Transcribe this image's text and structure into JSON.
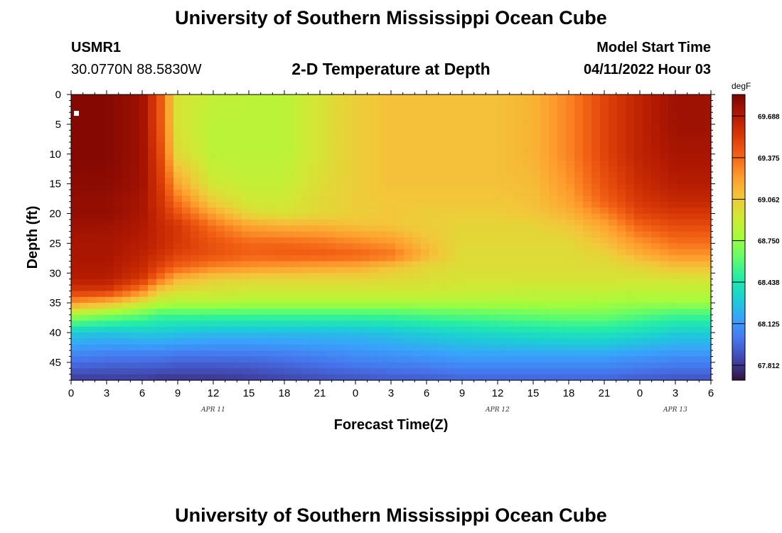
{
  "page": {
    "top_title": "University of Southern Mississippi Ocean Cube",
    "bottom_title": "University of Southern Mississippi Ocean Cube",
    "station_id": "USMR1",
    "station_coords": "30.0770N  88.5830W",
    "plot_title": "2-D Temperature at Depth",
    "model_start_label": "Model Start Time",
    "model_start_value": "04/11/2022 Hour 03"
  },
  "chart_data": {
    "type": "heatmap",
    "title": "2-D Temperature at Depth",
    "xlabel": "Forecast Time(Z)",
    "ylabel": "Depth (ft)",
    "x_tick_labels": [
      "0",
      "3",
      "6",
      "9",
      "12",
      "15",
      "18",
      "21",
      "0",
      "3",
      "6",
      "9",
      "12",
      "15",
      "18",
      "21",
      "0",
      "3",
      "6"
    ],
    "date_labels": [
      {
        "label": "APR 11",
        "hour": 12
      },
      {
        "label": "APR 12",
        "hour": 36
      },
      {
        "label": "APR 13",
        "hour": 51
      }
    ],
    "xlim": [
      0,
      54
    ],
    "y_ticks": [
      0,
      5,
      10,
      15,
      20,
      25,
      30,
      35,
      40,
      45
    ],
    "ylim": [
      0,
      48
    ],
    "y_inverted": true,
    "colorbar": {
      "unit": "degF",
      "ticks": [
        "69.688",
        "69.375",
        "69.062",
        "68.750",
        "68.438",
        "68.125",
        "67.812"
      ],
      "range": [
        67.7,
        69.85
      ],
      "colors": [
        "#30123b",
        "#4145ab",
        "#4675ed",
        "#39a2fc",
        "#1bcfd4",
        "#24eca6",
        "#61fc6c",
        "#a4fc3b",
        "#d1e834",
        "#f3c63a",
        "#fe9b2d",
        "#f36315",
        "#d93806",
        "#b11901",
        "#7a0403"
      ]
    },
    "columns_hours": [
      0,
      3,
      6,
      7.5,
      9,
      12,
      15,
      18,
      21,
      24,
      27,
      30,
      33,
      36,
      39,
      42,
      45,
      48,
      51,
      54
    ],
    "rows_depth_ft": [
      0,
      5,
      10,
      15,
      18,
      20,
      22,
      25,
      27,
      29,
      31,
      33,
      35,
      37,
      40,
      44,
      48
    ],
    "values": [
      [
        69.82,
        69.82,
        69.75,
        69.45,
        68.95,
        68.88,
        68.85,
        68.85,
        68.95,
        69.05,
        69.1,
        69.1,
        69.1,
        69.1,
        69.15,
        69.3,
        69.5,
        69.65,
        69.75,
        69.75
      ],
      [
        69.82,
        69.82,
        69.75,
        69.45,
        68.95,
        68.85,
        68.85,
        68.85,
        68.95,
        69.05,
        69.1,
        69.1,
        69.1,
        69.1,
        69.15,
        69.3,
        69.5,
        69.65,
        69.75,
        69.75
      ],
      [
        69.82,
        69.82,
        69.75,
        69.5,
        69.0,
        68.85,
        68.85,
        68.85,
        68.95,
        69.05,
        69.1,
        69.1,
        69.1,
        69.1,
        69.15,
        69.3,
        69.5,
        69.65,
        69.72,
        69.72
      ],
      [
        69.8,
        69.8,
        69.75,
        69.55,
        69.2,
        68.92,
        68.88,
        68.88,
        68.98,
        69.05,
        69.1,
        69.1,
        69.1,
        69.1,
        69.12,
        69.25,
        69.45,
        69.6,
        69.68,
        69.68
      ],
      [
        69.78,
        69.78,
        69.72,
        69.58,
        69.35,
        69.05,
        68.92,
        68.92,
        69.0,
        69.05,
        69.08,
        69.08,
        69.08,
        69.08,
        69.1,
        69.2,
        69.4,
        69.55,
        69.62,
        69.62
      ],
      [
        69.78,
        69.78,
        69.72,
        69.6,
        69.45,
        69.2,
        69.0,
        68.95,
        69.0,
        69.05,
        69.08,
        69.05,
        69.05,
        69.05,
        69.08,
        69.15,
        69.3,
        69.5,
        69.55,
        69.55
      ],
      [
        69.75,
        69.75,
        69.7,
        69.62,
        69.55,
        69.35,
        69.2,
        69.15,
        69.15,
        69.1,
        69.08,
        69.05,
        69.02,
        69.02,
        69.02,
        69.08,
        69.2,
        69.4,
        69.48,
        69.48
      ],
      [
        69.72,
        69.72,
        69.68,
        69.62,
        69.55,
        69.45,
        69.38,
        69.38,
        69.35,
        69.3,
        69.25,
        69.1,
        69.0,
        69.0,
        69.0,
        69.0,
        69.1,
        69.25,
        69.35,
        69.35
      ],
      [
        69.72,
        69.72,
        69.65,
        69.58,
        69.5,
        69.45,
        69.4,
        69.42,
        69.42,
        69.4,
        69.35,
        69.15,
        68.98,
        68.98,
        68.98,
        68.98,
        69.02,
        69.15,
        69.25,
        69.25
      ],
      [
        69.7,
        69.7,
        69.62,
        69.5,
        69.4,
        69.3,
        69.25,
        69.22,
        69.2,
        69.18,
        69.1,
        69.0,
        68.98,
        68.98,
        68.98,
        68.98,
        68.98,
        69.02,
        69.1,
        69.1
      ],
      [
        69.68,
        69.68,
        69.55,
        69.35,
        69.15,
        69.05,
        69.02,
        69.02,
        69.02,
        69.02,
        69.0,
        68.98,
        68.95,
        68.95,
        68.95,
        68.95,
        68.95,
        68.95,
        68.95,
        68.95
      ],
      [
        69.55,
        69.55,
        69.3,
        69.05,
        68.98,
        68.95,
        68.92,
        68.92,
        68.92,
        68.92,
        68.92,
        68.92,
        68.9,
        68.9,
        68.88,
        68.88,
        68.88,
        68.86,
        68.86,
        68.86
      ],
      [
        69.25,
        69.15,
        68.95,
        68.85,
        68.82,
        68.82,
        68.8,
        68.8,
        68.8,
        68.8,
        68.8,
        68.8,
        68.8,
        68.8,
        68.8,
        68.8,
        68.78,
        68.76,
        68.76,
        68.76
      ],
      [
        68.8,
        68.7,
        68.62,
        68.55,
        68.55,
        68.55,
        68.55,
        68.55,
        68.55,
        68.55,
        68.55,
        68.58,
        68.6,
        68.62,
        68.64,
        68.66,
        68.66,
        68.6,
        68.55,
        68.55
      ],
      [
        68.3,
        68.28,
        68.3,
        68.3,
        68.28,
        68.25,
        68.25,
        68.25,
        68.25,
        68.25,
        68.28,
        68.32,
        68.35,
        68.38,
        68.4,
        68.42,
        68.42,
        68.38,
        68.32,
        68.32
      ],
      [
        68.05,
        68.02,
        68.02,
        68.02,
        68.0,
        68.0,
        68.0,
        68.02,
        68.05,
        68.08,
        68.1,
        68.12,
        68.15,
        68.15,
        68.15,
        68.15,
        68.15,
        68.12,
        68.1,
        68.1
      ],
      [
        67.82,
        67.82,
        67.82,
        67.8,
        67.8,
        67.8,
        67.82,
        67.85,
        67.88,
        67.9,
        67.92,
        67.92,
        67.95,
        67.95,
        67.95,
        67.95,
        67.95,
        67.92,
        67.9,
        67.9
      ]
    ],
    "grid": false,
    "legend": "colorbar-right"
  }
}
